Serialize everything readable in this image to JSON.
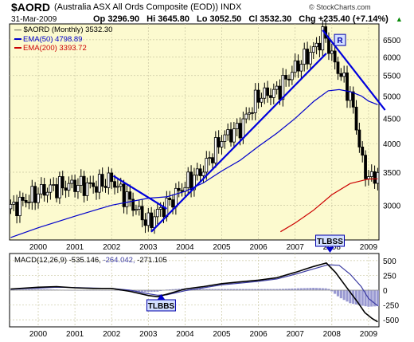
{
  "header": {
    "symbol": "$AORD",
    "name": "(Australia ASX All Ords Composite (EOD)) INDX",
    "date": "31-Mar-2009",
    "open": "Op 3296.90",
    "high": "Hi 3645.80",
    "low": "Lo 3052.50",
    "close": "Cl 3532.30",
    "change": "Chg +235.40 (+7.14%)",
    "arrow": "▲",
    "watermark": "© StockCharts.com"
  },
  "legend": {
    "symbol": "$AORD (Monthly) 3532.30",
    "ema50": "EMA(50) 4798.89",
    "ema200": "EMA(200) 3393.72",
    "macd_label": "MACD(12,26,9) -535.146,",
    "macd_signal": "-264.042,",
    "macd_hist": "-271.105"
  },
  "colors": {
    "panel_bg": "#fcfacf",
    "grid": "#c9c7a2",
    "price": "#000000",
    "ema50": "#0000cc",
    "ema200": "#cc0000",
    "trendline": "#0000dd",
    "macd_line": "#000000",
    "signal_line": "#3a3aa0",
    "histogram": "#9a9ad2",
    "annotation_bg": "#d4e0ff"
  },
  "annotations": {
    "r_label": "R",
    "tlbbs_top": "TLBSS",
    "tlbbs_bottom": "TLBBS"
  },
  "chart_data": [
    {
      "type": "candlestick",
      "title": "$AORD (Monthly)",
      "scale": "log",
      "x_tick_labels": [
        "2000",
        "2001",
        "2002",
        "2003",
        "2004",
        "2005",
        "2006",
        "2007",
        "2008",
        "2009"
      ],
      "y_tick_labels": [
        "3000",
        "3500",
        "4000",
        "4500",
        "5000",
        "5500",
        "6000",
        "6500"
      ],
      "ylim": [
        2550,
        7000
      ],
      "grid": true,
      "series": [
        {
          "name": "$AORD",
          "years": [
            1999.25,
            1999.75,
            2000.0,
            2000.5,
            2001.0,
            2001.5,
            2002.0,
            2002.25,
            2002.5,
            2002.75,
            2003.0,
            2003.25,
            2003.5,
            2004.0,
            2004.5,
            2005.0,
            2005.5,
            2006.0,
            2006.5,
            2007.0,
            2007.5,
            2007.8,
            2008.0,
            2008.25,
            2008.5,
            2008.75,
            2008.9,
            2009.0,
            2009.1,
            2009.25
          ],
          "close": [
            2950,
            3100,
            3180,
            3270,
            3300,
            3280,
            3380,
            3200,
            3050,
            2900,
            2750,
            2900,
            3000,
            3300,
            3550,
            4100,
            4300,
            5000,
            5100,
            5700,
            6200,
            6700,
            6000,
            5500,
            5000,
            4000,
            3400,
            3550,
            3300,
            3532
          ]
        },
        {
          "name": "EMA(50)",
          "years": [
            1999.25,
            2000.0,
            2001.0,
            2002.0,
            2003.0,
            2003.5,
            2004.0,
            2004.5,
            2005.0,
            2005.5,
            2006.0,
            2006.5,
            2007.0,
            2007.5,
            2007.9,
            2008.2,
            2008.5,
            2008.8,
            2009.0,
            2009.25
          ],
          "values": [
            2580,
            2700,
            2850,
            3000,
            3100,
            3120,
            3200,
            3330,
            3520,
            3700,
            3950,
            4200,
            4500,
            4870,
            5120,
            5150,
            5100,
            5000,
            4880,
            4799
          ]
        },
        {
          "name": "EMA(200)",
          "years": [
            2006.6,
            2007.0,
            2007.5,
            2008.0,
            2008.5,
            2009.0,
            2009.25
          ],
          "values": [
            2650,
            2760,
            2930,
            3150,
            3320,
            3390,
            3394
          ]
        }
      ],
      "trendlines": [
        {
          "from": [
            2002.05,
            3440
          ],
          "to": [
            2003.5,
            2950
          ]
        },
        {
          "from": [
            2003.08,
            2650
          ],
          "to": [
            2007.85,
            6100
          ]
        },
        {
          "from": [
            2007.75,
            6800
          ],
          "to": [
            2009.45,
            4680
          ]
        }
      ]
    },
    {
      "type": "line",
      "title": "MACD(12,26,9)",
      "x_tick_labels": [
        "2000",
        "2001",
        "2002",
        "2003",
        "2004",
        "2005",
        "2006",
        "2007",
        "2008",
        "2009"
      ],
      "y_tick_labels": [
        "500",
        "250",
        "0",
        "-250",
        "-500"
      ],
      "ylim": [
        -620,
        620
      ],
      "grid": true,
      "series": [
        {
          "name": "MACD",
          "years": [
            1999.25,
            2000.0,
            2000.5,
            2001.0,
            2001.5,
            2002.0,
            2002.5,
            2003.0,
            2003.25,
            2003.5,
            2004.0,
            2004.5,
            2005.0,
            2005.5,
            2006.0,
            2006.5,
            2007.0,
            2007.5,
            2007.85,
            2008.1,
            2008.4,
            2008.7,
            2008.9,
            2009.1,
            2009.25
          ],
          "values": [
            20,
            50,
            60,
            40,
            30,
            30,
            -20,
            -90,
            -110,
            -70,
            20,
            60,
            110,
            140,
            170,
            210,
            300,
            400,
            460,
            300,
            50,
            -200,
            -380,
            -480,
            -535
          ]
        },
        {
          "name": "Signal",
          "years": [
            1999.25,
            2000.0,
            2000.5,
            2001.0,
            2001.5,
            2002.0,
            2002.5,
            2003.0,
            2003.25,
            2003.5,
            2004.0,
            2004.5,
            2005.0,
            2005.5,
            2006.0,
            2006.5,
            2007.0,
            2007.5,
            2007.9,
            2008.2,
            2008.5,
            2008.8,
            2009.0,
            2009.25
          ],
          "values": [
            15,
            35,
            50,
            45,
            35,
            30,
            0,
            -60,
            -85,
            -80,
            -10,
            40,
            90,
            120,
            150,
            190,
            270,
            360,
            430,
            420,
            270,
            60,
            -140,
            -264
          ]
        },
        {
          "name": "Histogram",
          "years": [
            1999.25,
            2000.0,
            2000.5,
            2001.0,
            2001.5,
            2002.0,
            2002.5,
            2003.0,
            2003.25,
            2003.5,
            2004.0,
            2004.5,
            2005.0,
            2005.5,
            2006.0,
            2006.5,
            2007.0,
            2007.5,
            2007.9,
            2008.2,
            2008.5,
            2008.8,
            2009.0,
            2009.25
          ],
          "values": [
            5,
            15,
            10,
            -5,
            -5,
            0,
            -20,
            -30,
            -25,
            10,
            30,
            20,
            20,
            20,
            20,
            20,
            30,
            40,
            30,
            -120,
            -220,
            -260,
            -280,
            -271
          ]
        }
      ]
    }
  ]
}
